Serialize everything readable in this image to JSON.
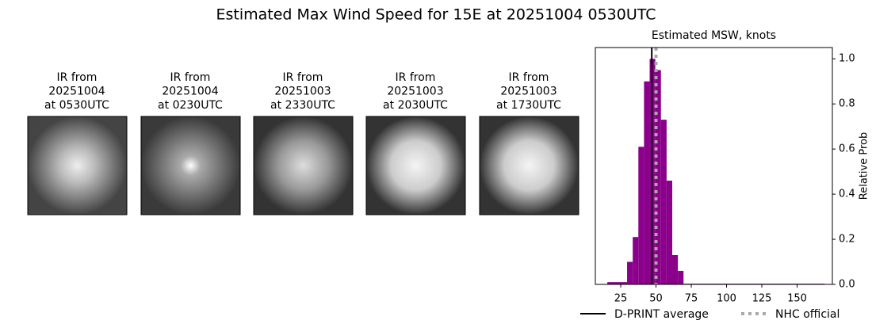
{
  "title": "Estimated Max Wind Speed for 15E at 20251004 0530UTC",
  "ir_panels": [
    {
      "label": [
        "IR from",
        "20251004",
        "at 0530UTC"
      ]
    },
    {
      "label": [
        "IR from",
        "20251004",
        "at 0230UTC"
      ]
    },
    {
      "label": [
        "IR from",
        "20251003",
        "at 2330UTC"
      ]
    },
    {
      "label": [
        "IR from",
        "20251003",
        "at 2030UTC"
      ]
    },
    {
      "label": [
        "IR from",
        "20251003",
        "at 1730UTC"
      ]
    }
  ],
  "chart_data": {
    "type": "histogram",
    "title": "Estimated MSW, knots",
    "ylabel": "Relative Prob",
    "color": "#8b008b",
    "bins": [
      15.5,
      29.5,
      33.5,
      37.5,
      41.5,
      45.5,
      49.5,
      53.5,
      57.5,
      61.5,
      65.5,
      69.5,
      169.5
    ],
    "values": [
      0.01,
      0.1,
      0.21,
      0.61,
      0.9,
      1.0,
      0.95,
      0.73,
      0.46,
      0.13,
      0.06,
      0.003
    ],
    "xlim": [
      7,
      175
    ],
    "ylim": [
      0,
      1.05
    ],
    "xticks": [
      25,
      50,
      75,
      100,
      125,
      150
    ],
    "yticks": [
      {
        "value": 0,
        "label": "0.0"
      },
      0.2,
      0.4,
      0.6,
      0.8,
      {
        "value": 1,
        "label": "1.0"
      }
    ],
    "lines": [
      {
        "name": "D-PRINT average",
        "value": 47,
        "color": "#000000",
        "style": "solid"
      },
      {
        "name": "NHC official",
        "value": 50,
        "color": "#aaaaaa",
        "style": "dotted"
      }
    ]
  }
}
